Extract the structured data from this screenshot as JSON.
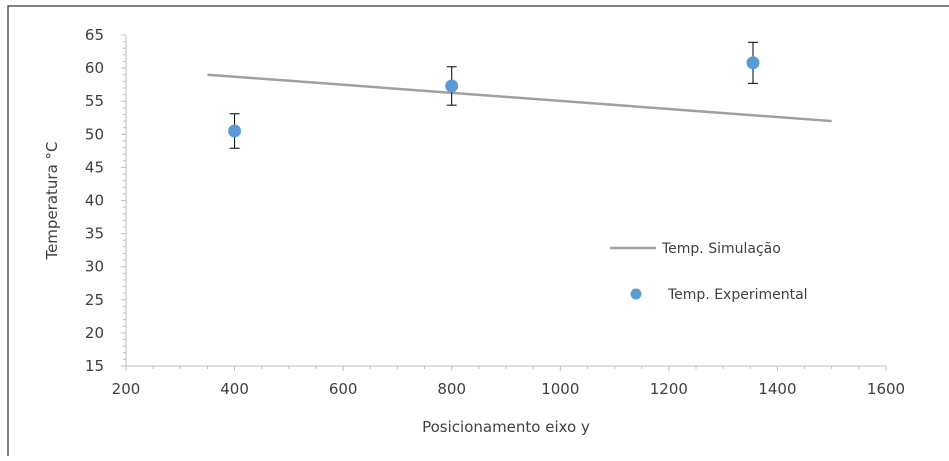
{
  "chart_data": {
    "type": "scatter",
    "title": "",
    "xlabel": "Posicionamento eixo y",
    "ylabel": "Temperatura °C",
    "xlim": [
      200,
      1600
    ],
    "ylim": [
      15,
      65
    ],
    "xticks": [
      200,
      400,
      600,
      800,
      1000,
      1200,
      1400,
      1600
    ],
    "yticks": [
      15,
      20,
      25,
      30,
      35,
      40,
      45,
      50,
      55,
      60,
      65
    ],
    "grid": false,
    "legend_position": "right",
    "series": [
      {
        "name": "Temp. Simulação",
        "kind": "line",
        "color": "#a0a0a0",
        "x": [
          350,
          1500
        ],
        "y": [
          59,
          52
        ]
      },
      {
        "name": "Temp. Experimental",
        "kind": "scatter",
        "color": "#5b9bd5",
        "x": [
          400,
          800,
          1355
        ],
        "y": [
          50.5,
          57.3,
          60.8
        ],
        "error": [
          2.6,
          2.9,
          3.1
        ]
      }
    ]
  }
}
